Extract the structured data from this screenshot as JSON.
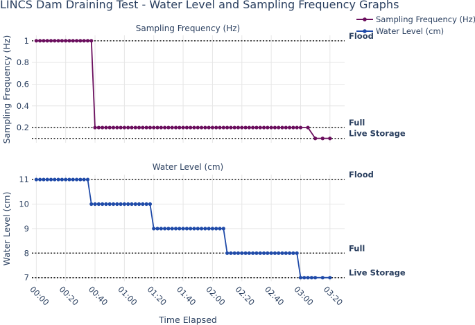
{
  "chart_data": {
    "title": "LINCS Dam Draining Test - Water Level and Sampling Frequency Graphs",
    "xlabel": "Time Elapsed",
    "x_tick_labels": [
      "00:00",
      "00:20",
      "00:40",
      "01:00",
      "01:20",
      "01:40",
      "02:00",
      "02:20",
      "02:40",
      "03:00",
      "03:20"
    ],
    "legend": {
      "placement": "top-right",
      "items": [
        "Sampling Frequency (Hz)",
        "Water Level (cm)"
      ]
    },
    "colors": {
      "sampling": "#6b0f5e",
      "water": "#1f4aa8",
      "ref": "#222222",
      "grid": "#e6e6e6",
      "text": "#2a3f5f"
    },
    "panels": [
      {
        "type": "line",
        "subtitle": "Sampling Frequency (Hz)",
        "ylabel": "Sampling Frequency (Hz)",
        "ylim": [
          0.06,
          1.05
        ],
        "yticks": [
          1,
          0.8,
          0.6,
          0.4,
          0.2
        ],
        "series_name": "Sampling Frequency (Hz)",
        "x_minutes": [
          0,
          2.5,
          5,
          7.5,
          10,
          12.5,
          15,
          17.5,
          20,
          22.5,
          25,
          27.5,
          30,
          32.5,
          35,
          37.5,
          40,
          42.5,
          45,
          47.5,
          50,
          52.5,
          55,
          57.5,
          60,
          62.5,
          65,
          67.5,
          70,
          72.5,
          75,
          77.5,
          80,
          82.5,
          85,
          87.5,
          90,
          92.5,
          95,
          97.5,
          100,
          102.5,
          105,
          107.5,
          110,
          112.5,
          115,
          117.5,
          120,
          122.5,
          125,
          127.5,
          130,
          132.5,
          135,
          137.5,
          140,
          142.5,
          145,
          147.5,
          150,
          152.5,
          155,
          157.5,
          160,
          162.5,
          165,
          167.5,
          170,
          172.5,
          175,
          177.5,
          180,
          185,
          190,
          195,
          200
        ],
        "y": [
          1,
          1,
          1,
          1,
          1,
          1,
          1,
          1,
          1,
          1,
          1,
          1,
          1,
          1,
          1,
          1,
          0.2,
          0.2,
          0.2,
          0.2,
          0.2,
          0.2,
          0.2,
          0.2,
          0.2,
          0.2,
          0.2,
          0.2,
          0.2,
          0.2,
          0.2,
          0.2,
          0.2,
          0.2,
          0.2,
          0.2,
          0.2,
          0.2,
          0.2,
          0.2,
          0.2,
          0.2,
          0.2,
          0.2,
          0.2,
          0.2,
          0.2,
          0.2,
          0.2,
          0.2,
          0.2,
          0.2,
          0.2,
          0.2,
          0.2,
          0.2,
          0.2,
          0.2,
          0.2,
          0.2,
          0.2,
          0.2,
          0.2,
          0.2,
          0.2,
          0.2,
          0.2,
          0.2,
          0.2,
          0.2,
          0.2,
          0.2,
          0.2,
          0.2,
          0.1,
          0.1,
          0.1
        ],
        "reference_lines": [
          {
            "label": "Flood",
            "value": 1
          },
          {
            "label": "Full",
            "value": 0.2
          },
          {
            "label": "Live Storage",
            "value": 0.1
          }
        ]
      },
      {
        "type": "line",
        "subtitle": "Water Level (cm)",
        "ylabel": "Water Level (cm)",
        "ylim": [
          6.85,
          11.2
        ],
        "yticks": [
          11,
          10,
          9,
          8,
          7
        ],
        "series_name": "Water Level (cm)",
        "x_minutes": [
          0,
          2.5,
          5,
          7.5,
          10,
          12.5,
          15,
          17.5,
          20,
          22.5,
          25,
          27.5,
          30,
          32.5,
          35,
          37.5,
          40,
          42.5,
          45,
          47.5,
          50,
          52.5,
          55,
          57.5,
          60,
          62.5,
          65,
          67.5,
          70,
          72.5,
          75,
          77.5,
          80,
          82.5,
          85,
          87.5,
          90,
          92.5,
          95,
          97.5,
          100,
          102.5,
          105,
          107.5,
          110,
          112.5,
          115,
          117.5,
          120,
          122.5,
          125,
          127.5,
          130,
          132.5,
          135,
          137.5,
          140,
          142.5,
          145,
          147.5,
          150,
          152.5,
          155,
          157.5,
          160,
          162.5,
          165,
          167.5,
          170,
          172.5,
          175,
          177.5,
          180,
          182.5,
          185,
          187.5,
          190,
          195,
          200
        ],
        "y": [
          11,
          11,
          11,
          11,
          11,
          11,
          11,
          11,
          11,
          11,
          11,
          11,
          11,
          11,
          11,
          10,
          10,
          10,
          10,
          10,
          10,
          10,
          10,
          10,
          10,
          10,
          10,
          10,
          10,
          10,
          10,
          10,
          9,
          9,
          9,
          9,
          9,
          9,
          9,
          9,
          9,
          9,
          9,
          9,
          9,
          9,
          9,
          9,
          9,
          9,
          9,
          9,
          8,
          8,
          8,
          8,
          8,
          8,
          8,
          8,
          8,
          8,
          8,
          8,
          8,
          8,
          8,
          8,
          8,
          8,
          8,
          8,
          7,
          7,
          7,
          7,
          7,
          7,
          7
        ],
        "reference_lines": [
          {
            "label": "Flood",
            "value": 11
          },
          {
            "label": "Full",
            "value": 8
          },
          {
            "label": "Live Storage",
            "value": 7
          }
        ]
      }
    ]
  }
}
